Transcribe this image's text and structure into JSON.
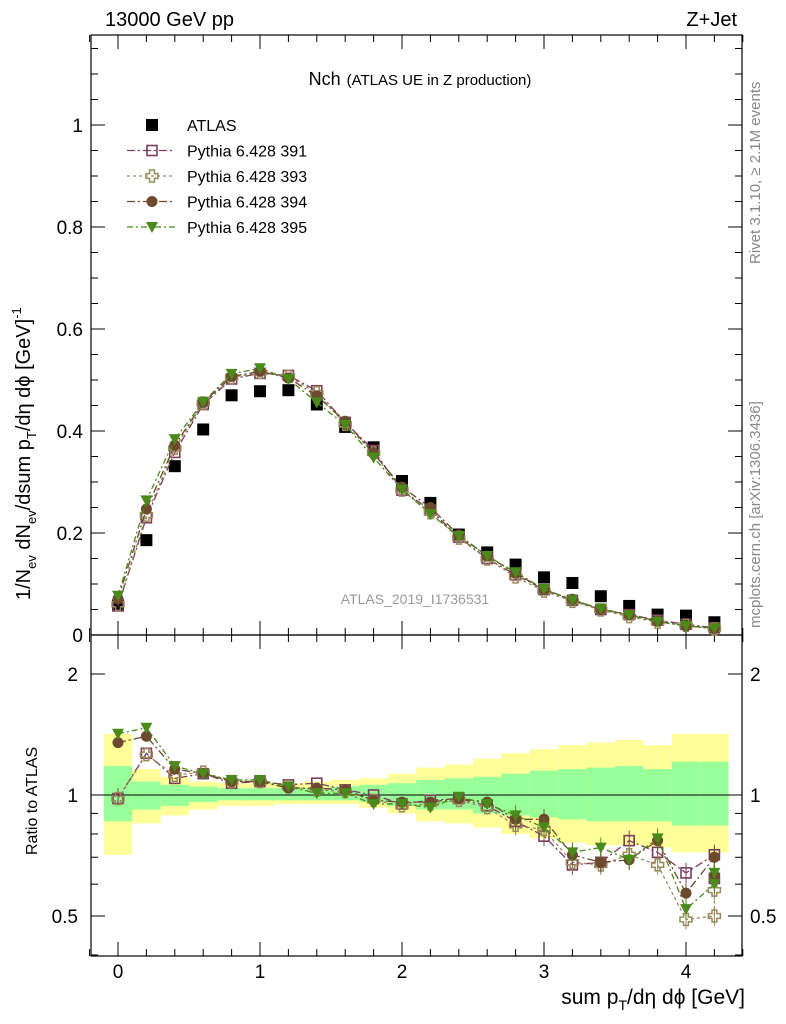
{
  "header": {
    "left": "13000 GeV pp",
    "right": "Z+Jet"
  },
  "side": {
    "rivet": "Rivet 3.1.10, ≥ 2.1M events",
    "mcplots": "mcplots.cern.ch [arXiv:1306.3436]"
  },
  "watermark": "ATLAS_2019_I1736531",
  "main": {
    "title_main": "Nch",
    "title_sub": "(ATLAS UE in Z production)",
    "ylabel_main": "1/N",
    "ylabel_sub_ev": "ev",
    "ylabel_dN": " dN",
    "ylabel_sub_ev2": "ev",
    "ylabel_dsum": "/dsum p",
    "ylabel_sub_T": "T",
    "ylabel_rest": "/dη dϕ  [GeV]",
    "ylabel_sup": "-1",
    "yticks": [
      "0",
      "0.2",
      "0.4",
      "0.6",
      "0.8",
      "1"
    ]
  },
  "ratio": {
    "ylabel": "Ratio to ATLAS",
    "yticks_left": [
      "0.5",
      "1",
      "2"
    ],
    "yticks_right": [
      "0.5",
      "1",
      "2"
    ]
  },
  "xaxis": {
    "label_pre": "sum p",
    "label_sub": "T",
    "label_post": "/dη dϕ [GeV]",
    "ticks": [
      "0",
      "1",
      "2",
      "3",
      "4"
    ]
  },
  "legend": [
    {
      "label": "ATLAS",
      "marker": "square-filled",
      "color": "#000000"
    },
    {
      "label": "Pythia 6.428 391",
      "marker": "square-open",
      "color": "#7a3d5c"
    },
    {
      "label": "Pythia 6.428 393",
      "marker": "cross-open",
      "color": "#9a8a5a"
    },
    {
      "label": "Pythia 6.428 394",
      "marker": "circle-filled",
      "color": "#6b4a2e"
    },
    {
      "label": "Pythia 6.428 395",
      "marker": "triangle-filled",
      "color": "#4a8a1a"
    }
  ],
  "chart_data": {
    "type": "scatter",
    "x": [
      0.0,
      0.2,
      0.4,
      0.6,
      0.8,
      1.0,
      1.2,
      1.4,
      1.6,
      1.8,
      2.0,
      2.2,
      2.4,
      2.6,
      2.8,
      3.0,
      3.2,
      3.4,
      3.6,
      3.8,
      4.0,
      4.2
    ],
    "xlim": [
      -0.2,
      4.4
    ],
    "main_ylim": [
      0,
      1.18
    ],
    "ratio_ylim": [
      0.35,
      2.4
    ],
    "ratio_log": true,
    "series": [
      {
        "name": "ATLAS",
        "values": [
          0.058,
          0.186,
          0.331,
          0.403,
          0.47,
          0.478,
          0.48,
          0.452,
          0.408,
          0.368,
          0.302,
          0.259,
          0.197,
          0.162,
          0.138,
          0.113,
          0.102,
          0.076,
          0.057,
          0.04,
          0.038,
          0.025
        ]
      },
      {
        "name": "Pythia 6.428 391",
        "values": [
          0.057,
          0.23,
          0.358,
          0.452,
          0.502,
          0.513,
          0.509,
          0.479,
          0.417,
          0.362,
          0.284,
          0.245,
          0.192,
          0.15,
          0.118,
          0.089,
          0.068,
          0.05,
          0.04,
          0.029,
          0.021,
          0.014
        ]
      },
      {
        "name": "Pythia 6.428 393",
        "values": [
          0.06,
          0.235,
          0.366,
          0.455,
          0.505,
          0.515,
          0.507,
          0.475,
          0.413,
          0.357,
          0.284,
          0.24,
          0.19,
          0.149,
          0.114,
          0.086,
          0.066,
          0.049,
          0.036,
          0.025,
          0.019,
          0.012
        ]
      },
      {
        "name": "Pythia 6.428 394",
        "values": [
          0.071,
          0.247,
          0.372,
          0.456,
          0.507,
          0.517,
          0.504,
          0.469,
          0.419,
          0.356,
          0.29,
          0.25,
          0.196,
          0.155,
          0.121,
          0.089,
          0.07,
          0.05,
          0.04,
          0.027,
          0.018,
          0.013
        ]
      },
      {
        "name": "Pythia 6.428 395",
        "values": [
          0.077,
          0.264,
          0.384,
          0.457,
          0.512,
          0.523,
          0.502,
          0.456,
          0.412,
          0.348,
          0.285,
          0.237,
          0.194,
          0.155,
          0.123,
          0.09,
          0.068,
          0.052,
          0.039,
          0.026,
          0.018,
          0.013
        ]
      }
    ],
    "ratio_series": [
      {
        "name": "Pythia 6.428 391",
        "values": [
          0.98,
          1.27,
          1.1,
          1.13,
          1.07,
          1.08,
          1.06,
          1.07,
          1.03,
          1.0,
          0.95,
          0.97,
          0.98,
          0.94,
          0.86,
          0.79,
          0.67,
          0.68,
          0.77,
          0.72,
          0.64,
          0.71,
          0.62
        ]
      },
      {
        "name": "Pythia 6.428 393",
        "values": [
          0.98,
          1.26,
          1.12,
          1.14,
          1.08,
          1.08,
          1.05,
          1.03,
          1.02,
          0.97,
          0.94,
          0.95,
          0.97,
          0.93,
          0.84,
          0.82,
          0.68,
          0.67,
          0.71,
          0.67,
          0.49,
          0.5,
          0.58
        ]
      },
      {
        "name": "Pythia 6.428 394",
        "values": [
          1.35,
          1.4,
          1.16,
          1.13,
          1.08,
          1.08,
          1.04,
          1.04,
          1.03,
          0.97,
          0.96,
          0.96,
          0.98,
          0.96,
          0.87,
          0.87,
          0.71,
          0.68,
          0.69,
          0.77,
          0.57,
          0.7,
          0.63
        ]
      },
      {
        "name": "Pythia 6.428 395",
        "values": [
          1.42,
          1.47,
          1.18,
          1.13,
          1.09,
          1.09,
          1.05,
          1.01,
          1.01,
          0.95,
          0.95,
          0.93,
          0.99,
          0.95,
          0.89,
          0.83,
          0.72,
          0.74,
          0.69,
          0.78,
          0.52,
          0.6,
          0.64
        ]
      }
    ],
    "ratio_x": [
      0.0,
      0.2,
      0.4,
      0.6,
      0.8,
      1.0,
      1.2,
      1.4,
      1.6,
      1.8,
      2.0,
      2.2,
      2.4,
      2.6,
      2.8,
      3.0,
      3.2,
      3.4,
      3.6,
      3.8,
      4.0,
      4.2,
      4.2
    ],
    "bands": {
      "edges": [
        -0.1,
        0.1,
        0.3,
        0.5,
        0.7,
        0.9,
        1.1,
        1.3,
        1.5,
        1.7,
        1.9,
        2.1,
        2.3,
        2.5,
        2.7,
        2.9,
        3.1,
        3.3,
        3.5,
        3.7,
        3.9,
        4.1,
        4.3
      ],
      "green_lo": [
        0.86,
        0.92,
        0.94,
        0.96,
        0.97,
        0.97,
        0.97,
        0.97,
        0.97,
        0.96,
        0.94,
        0.92,
        0.92,
        0.9,
        0.89,
        0.88,
        0.87,
        0.86,
        0.86,
        0.86,
        0.84,
        0.84
      ],
      "green_hi": [
        1.18,
        1.08,
        1.06,
        1.05,
        1.04,
        1.04,
        1.04,
        1.04,
        1.05,
        1.06,
        1.07,
        1.09,
        1.1,
        1.11,
        1.13,
        1.15,
        1.16,
        1.17,
        1.18,
        1.16,
        1.21,
        1.21
      ],
      "yellow_lo": [
        0.71,
        0.85,
        0.89,
        0.92,
        0.94,
        0.94,
        0.95,
        0.95,
        0.95,
        0.93,
        0.9,
        0.86,
        0.85,
        0.83,
        0.8,
        0.78,
        0.76,
        0.75,
        0.75,
        0.74,
        0.72,
        0.72
      ],
      "yellow_hi": [
        1.42,
        1.16,
        1.11,
        1.08,
        1.07,
        1.07,
        1.07,
        1.08,
        1.09,
        1.1,
        1.13,
        1.17,
        1.19,
        1.23,
        1.27,
        1.3,
        1.33,
        1.35,
        1.37,
        1.33,
        1.42,
        1.42
      ]
    }
  }
}
